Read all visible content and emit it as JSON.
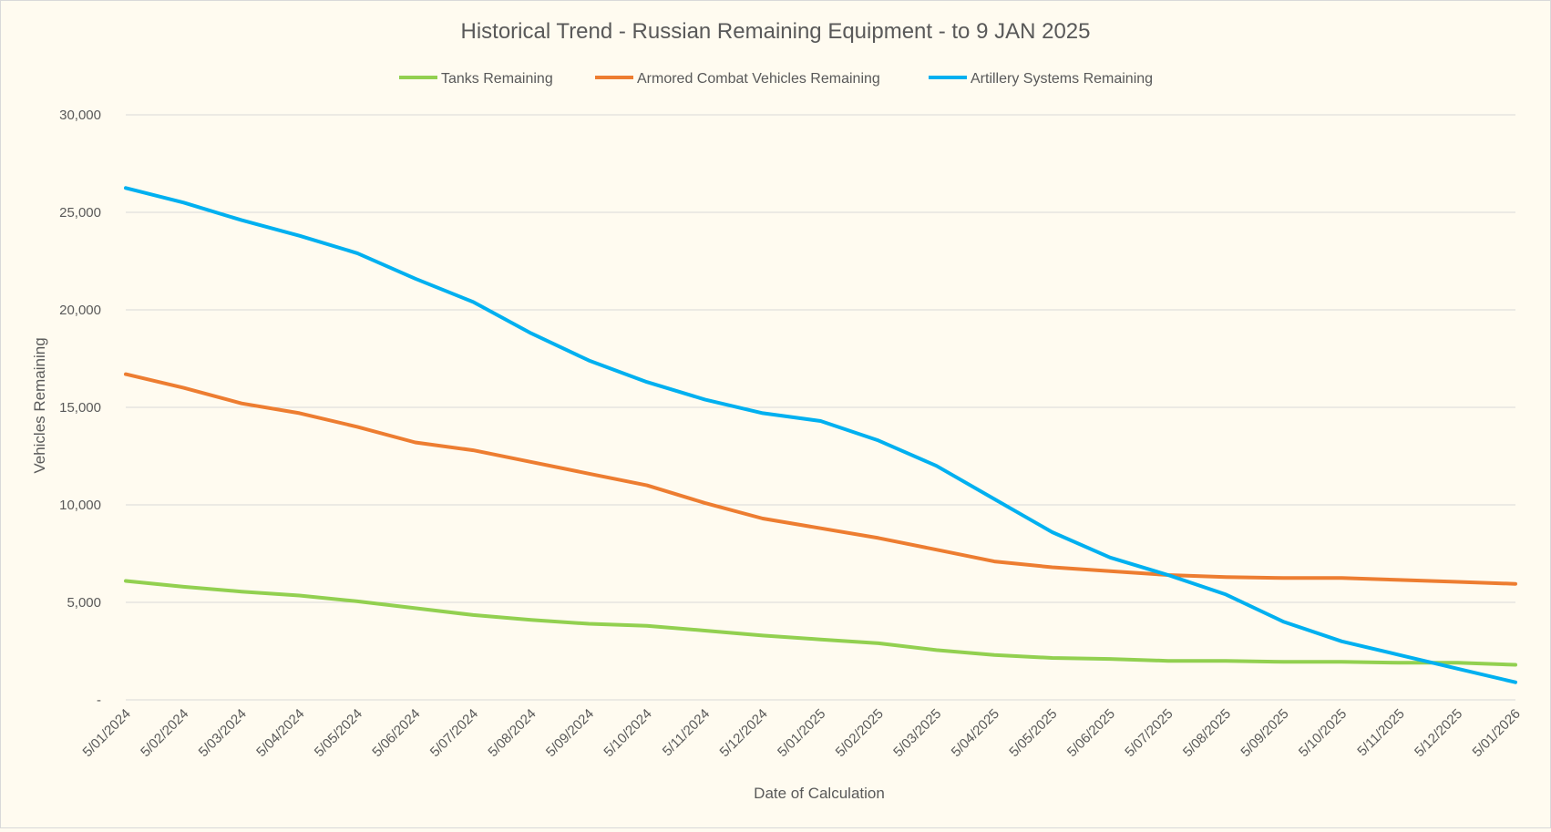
{
  "chart_data": {
    "type": "line",
    "title": "Historical Trend - Russian Remaining Equipment - to 9 JAN 2025",
    "xlabel": "Date of Calculation",
    "ylabel": "Vehicles Remaining",
    "ylim": [
      0,
      30000
    ],
    "y_ticks": [
      {
        "value": 0,
        "label": "-"
      },
      {
        "value": 5000,
        "label": "5,000"
      },
      {
        "value": 10000,
        "label": "10,000"
      },
      {
        "value": 15000,
        "label": "15,000"
      },
      {
        "value": 20000,
        "label": "20,000"
      },
      {
        "value": 25000,
        "label": "25,000"
      },
      {
        "value": 30000,
        "label": "30,000"
      }
    ],
    "grid": true,
    "legend_position": "top",
    "x_tick_labels": [
      "5/01/2024",
      "5/02/2024",
      "5/03/2024",
      "5/04/2024",
      "5/05/2024",
      "5/06/2024",
      "5/07/2024",
      "5/08/2024",
      "5/09/2024",
      "5/10/2024",
      "5/11/2024",
      "5/12/2024",
      "5/01/2025",
      "5/02/2025",
      "5/03/2025",
      "5/04/2025",
      "5/05/2025",
      "5/06/2025",
      "5/07/2025",
      "5/08/2025",
      "5/09/2025",
      "5/10/2025",
      "5/11/2025",
      "5/12/2025",
      "5/01/2026"
    ],
    "series": [
      {
        "name": "Tanks Remaining",
        "color": "#92d050",
        "values": [
          6100,
          5800,
          5550,
          5350,
          5050,
          4700,
          4350,
          4100,
          3900,
          3800,
          3550,
          3300,
          3100,
          2900,
          2550,
          2300,
          2150,
          2100,
          2000,
          2000,
          1950,
          1950,
          1900,
          1900,
          1800
        ]
      },
      {
        "name": "Armored Combat Vehicles Remaining",
        "color": "#ed7d31",
        "values": [
          16700,
          16000,
          15200,
          14700,
          14000,
          13200,
          12800,
          12200,
          11600,
          11000,
          10100,
          9300,
          8800,
          8300,
          7700,
          7100,
          6800,
          6600,
          6400,
          6300,
          6250,
          6250,
          6150,
          6050,
          5950
        ]
      },
      {
        "name": "Artillery Systems Remaining",
        "color": "#00b0f0",
        "values": [
          26250,
          25500,
          24600,
          23800,
          22900,
          21600,
          20400,
          18800,
          17400,
          16300,
          15400,
          14700,
          14300,
          13300,
          12000,
          10300,
          8600,
          7300,
          6400,
          5400,
          4000,
          3000,
          2300,
          1600,
          900
        ]
      }
    ]
  }
}
